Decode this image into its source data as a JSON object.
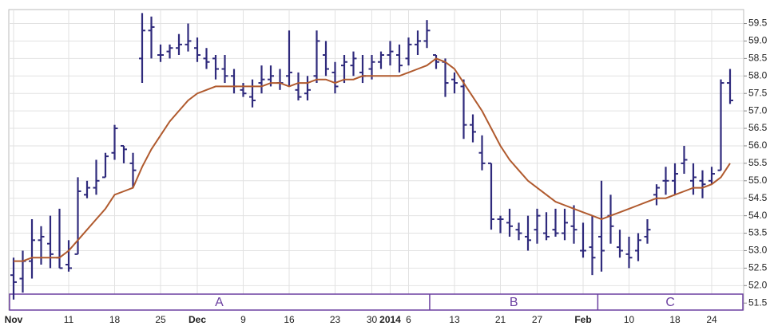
{
  "chart_data": {
    "type": "ohlc",
    "categories": [
      "Nov",
      null,
      null,
      null,
      null,
      null,
      "11",
      null,
      null,
      null,
      null,
      "18",
      null,
      null,
      null,
      null,
      "25",
      null,
      null,
      null,
      "Dec",
      null,
      null,
      null,
      null,
      "9",
      null,
      null,
      null,
      null,
      "16",
      null,
      null,
      null,
      null,
      "23",
      null,
      null,
      null,
      "30",
      null,
      "2014",
      null,
      "6",
      null,
      null,
      null,
      null,
      "13",
      null,
      null,
      null,
      null,
      "21",
      null,
      null,
      null,
      "27",
      null,
      null,
      null,
      null,
      "Feb",
      null,
      null,
      null,
      null,
      "10",
      null,
      null,
      null,
      null,
      "18",
      null,
      null,
      null,
      "24",
      null,
      null
    ],
    "open": [
      52.3,
      52.2,
      52.7,
      53.3,
      53.2,
      52.8,
      52.6,
      52.9,
      54.6,
      54.8,
      55.1,
      55.8,
      56.0,
      55.5,
      58.5,
      59.3,
      58.6,
      58.7,
      58.8,
      58.9,
      58.8,
      58.5,
      58.5,
      58.2,
      58.0,
      57.6,
      57.4,
      57.8,
      57.9,
      57.8,
      58.0,
      57.6,
      57.5,
      58.0,
      58.6,
      58.1,
      58.3,
      58.3,
      58.1,
      58.2,
      58.4,
      58.6,
      58.6,
      58.5,
      58.9,
      59.0,
      58.6,
      58.4,
      57.9,
      57.7,
      56.6,
      55.8,
      55.5,
      53.9,
      53.8,
      53.6,
      53.4,
      53.6,
      53.5,
      53.6,
      53.5,
      53.7,
      53.0,
      53.1,
      53.4,
      54.0,
      53.1,
      52.9,
      53.0,
      53.4,
      54.6,
      55.0,
      55.0,
      55.5,
      55.0,
      55.0,
      55.0,
      55.3,
      57.8
    ],
    "high": [
      52.8,
      53.0,
      53.9,
      53.7,
      54.0,
      54.2,
      53.3,
      55.1,
      55.0,
      55.6,
      55.8,
      56.6,
      56.0,
      55.8,
      59.8,
      59.7,
      58.9,
      58.9,
      59.2,
      59.5,
      59.1,
      58.8,
      58.6,
      58.6,
      58.2,
      57.8,
      57.9,
      58.3,
      58.3,
      58.2,
      59.3,
      58.1,
      58.0,
      59.3,
      59.0,
      58.4,
      58.6,
      58.7,
      58.6,
      58.6,
      58.7,
      59.0,
      58.9,
      59.1,
      59.3,
      59.6,
      58.6,
      58.5,
      58.1,
      57.9,
      56.9,
      56.3,
      55.5,
      54.0,
      54.2,
      53.8,
      54.0,
      54.2,
      54.1,
      54.2,
      54.2,
      54.3,
      53.8,
      54.0,
      55.0,
      54.6,
      53.6,
      53.4,
      53.5,
      53.9,
      54.9,
      55.4,
      55.5,
      56.0,
      55.5,
      55.3,
      55.4,
      57.9,
      58.2
    ],
    "low": [
      51.6,
      51.8,
      52.2,
      52.6,
      52.5,
      52.5,
      52.4,
      52.9,
      54.5,
      54.6,
      55.1,
      55.6,
      55.5,
      54.8,
      57.8,
      58.5,
      58.4,
      58.5,
      58.6,
      58.7,
      58.4,
      58.2,
      57.9,
      57.8,
      57.5,
      57.4,
      57.1,
      57.5,
      57.7,
      57.6,
      57.7,
      57.3,
      57.3,
      57.8,
      58.0,
      57.5,
      57.8,
      58.0,
      57.8,
      57.9,
      58.2,
      58.3,
      58.1,
      58.3,
      58.6,
      58.8,
      58.2,
      57.4,
      57.5,
      56.2,
      56.1,
      55.3,
      53.6,
      53.5,
      53.4,
      53.3,
      53.0,
      53.2,
      53.3,
      53.4,
      53.3,
      53.2,
      52.8,
      52.3,
      52.4,
      53.2,
      52.8,
      52.5,
      52.7,
      53.2,
      54.3,
      54.6,
      54.6,
      55.2,
      54.6,
      54.5,
      54.9,
      55.3,
      57.2
    ],
    "close": [
      52.1,
      52.7,
      53.3,
      53.4,
      52.9,
      52.5,
      52.5,
      54.7,
      54.8,
      55.0,
      55.7,
      56.5,
      55.9,
      55.3,
      59.3,
      59.4,
      58.6,
      58.8,
      58.9,
      59.0,
      58.6,
      58.4,
      58.2,
      58.0,
      57.7,
      57.5,
      57.3,
      57.9,
      58.0,
      57.8,
      58.1,
      57.4,
      57.6,
      59.0,
      58.2,
      57.7,
      58.4,
      58.5,
      58.0,
      58.4,
      58.6,
      58.7,
      58.3,
      58.9,
      59.0,
      59.3,
      58.4,
      57.8,
      57.8,
      56.6,
      56.4,
      55.5,
      53.9,
      53.9,
      53.7,
      53.5,
      53.3,
      54.0,
      53.4,
      53.5,
      53.8,
      53.6,
      53.0,
      52.8,
      53.0,
      53.7,
      53.0,
      52.8,
      53.3,
      53.6,
      54.8,
      55.0,
      55.2,
      55.6,
      55.1,
      54.9,
      55.2,
      57.8,
      57.3
    ],
    "moving_average": [
      52.7,
      52.7,
      52.8,
      52.8,
      52.8,
      52.8,
      53.0,
      53.3,
      53.6,
      53.9,
      54.2,
      54.6,
      54.7,
      54.8,
      55.4,
      55.9,
      56.3,
      56.7,
      57.0,
      57.3,
      57.5,
      57.6,
      57.7,
      57.7,
      57.7,
      57.7,
      57.7,
      57.7,
      57.8,
      57.8,
      57.7,
      57.8,
      57.8,
      57.9,
      57.9,
      57.8,
      57.9,
      57.9,
      58.0,
      58.0,
      58.0,
      58.0,
      58.0,
      58.1,
      58.2,
      58.3,
      58.5,
      58.4,
      58.2,
      57.8,
      57.4,
      57.0,
      56.5,
      56.0,
      55.6,
      55.3,
      55.0,
      54.8,
      54.6,
      54.4,
      54.3,
      54.2,
      54.1,
      54.0,
      53.9,
      54.0,
      54.1,
      54.2,
      54.3,
      54.4,
      54.5,
      54.5,
      54.6,
      54.7,
      54.8,
      54.8,
      54.9,
      55.1,
      55.5
    ],
    "bar_color": "#2f2a7c",
    "average_color": "#b05a2e",
    "annotation_color": "#6b3fa0",
    "annotations": [
      "A",
      "B",
      "C"
    ],
    "ylim": [
      51.3,
      59.9
    ],
    "yticks": [
      51.5,
      {
        "value": 52,
        "label": "52.0"
      },
      52.5,
      {
        "value": 53,
        "label": "53.0"
      },
      53.5,
      {
        "value": 54,
        "label": "54.0"
      },
      54.5,
      {
        "value": 55,
        "label": "55.0"
      },
      55.5,
      {
        "value": 56,
        "label": "56.0"
      },
      56.5,
      {
        "value": 57,
        "label": "57.0"
      },
      57.5,
      {
        "value": 58,
        "label": "58.0"
      },
      58.5,
      {
        "value": 59,
        "label": "59.0"
      },
      59.5
    ],
    "grid": true
  }
}
